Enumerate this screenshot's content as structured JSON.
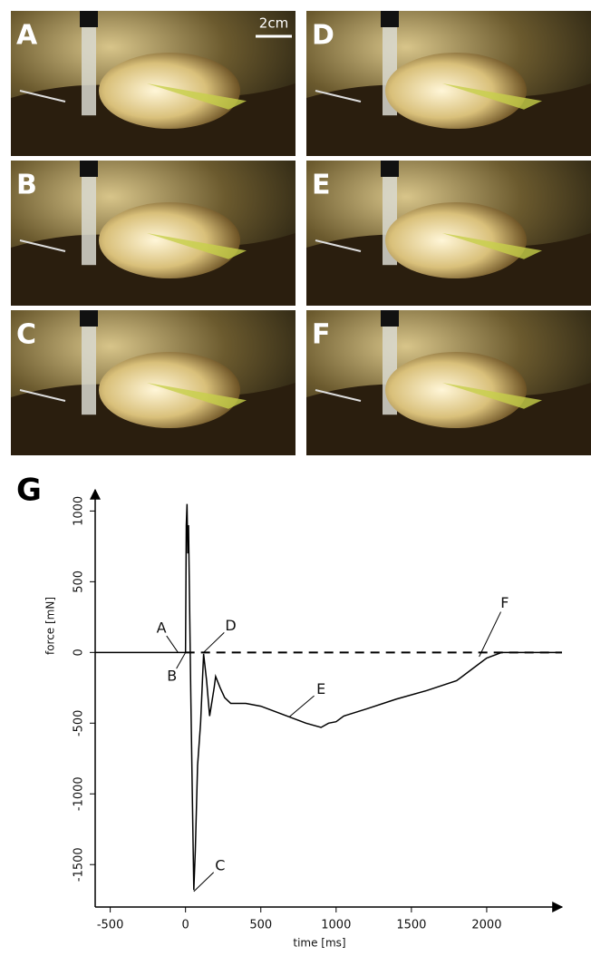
{
  "panels": [
    {
      "label": "A"
    },
    {
      "label": "D"
    },
    {
      "label": "B"
    },
    {
      "label": "E"
    },
    {
      "label": "C"
    },
    {
      "label": "F"
    }
  ],
  "scale_bar": "2cm",
  "figure_label": "G",
  "chart_data": {
    "type": "line",
    "x_label": "time [ms]",
    "y_label": "force [mN]",
    "color": "#000000",
    "x": [
      -600,
      -100,
      0,
      5,
      10,
      15,
      20,
      25,
      35,
      45,
      55,
      65,
      80,
      100,
      120,
      140,
      160,
      190,
      200,
      230,
      260,
      300,
      400,
      500,
      600,
      700,
      800,
      900,
      950,
      1000,
      1050,
      1200,
      1400,
      1600,
      1800,
      1900,
      2000,
      2100,
      2500
    ],
    "values": [
      0,
      0,
      0,
      900,
      1050,
      700,
      900,
      500,
      -300,
      -1000,
      -1680,
      -1400,
      -800,
      -500,
      -10,
      -200,
      -450,
      -250,
      -170,
      -250,
      -320,
      -360,
      -360,
      -380,
      -420,
      -460,
      -500,
      -530,
      -500,
      -490,
      -450,
      -400,
      -330,
      -270,
      -200,
      -120,
      -40,
      0,
      0
    ],
    "xlim": [
      -600,
      2500
    ],
    "ylim": [
      -1800,
      1150
    ],
    "xticks": [
      -500,
      0,
      500,
      1000,
      1500,
      2000
    ],
    "yticks": [
      -1500,
      -1000,
      -500,
      0,
      500,
      1000
    ],
    "reference_line": {
      "y": 0,
      "x": [
        0,
        2500
      ],
      "style": "dashed"
    },
    "annotations": [
      {
        "text": "A",
        "x": -160,
        "y": 170,
        "point_x": -50,
        "point_y": 0
      },
      {
        "text": "B",
        "x": -90,
        "y": -170,
        "point_x": 0,
        "point_y": 0
      },
      {
        "text": "C",
        "x": 230,
        "y": -1510,
        "point_x": 55,
        "point_y": -1690
      },
      {
        "text": "D",
        "x": 300,
        "y": 185,
        "point_x": 120,
        "point_y": 0
      },
      {
        "text": "E",
        "x": 900,
        "y": -265,
        "point_x": 690,
        "point_y": -455
      },
      {
        "text": "F",
        "x": 2120,
        "y": 345,
        "point_x": 1950,
        "point_y": -30
      }
    ]
  }
}
